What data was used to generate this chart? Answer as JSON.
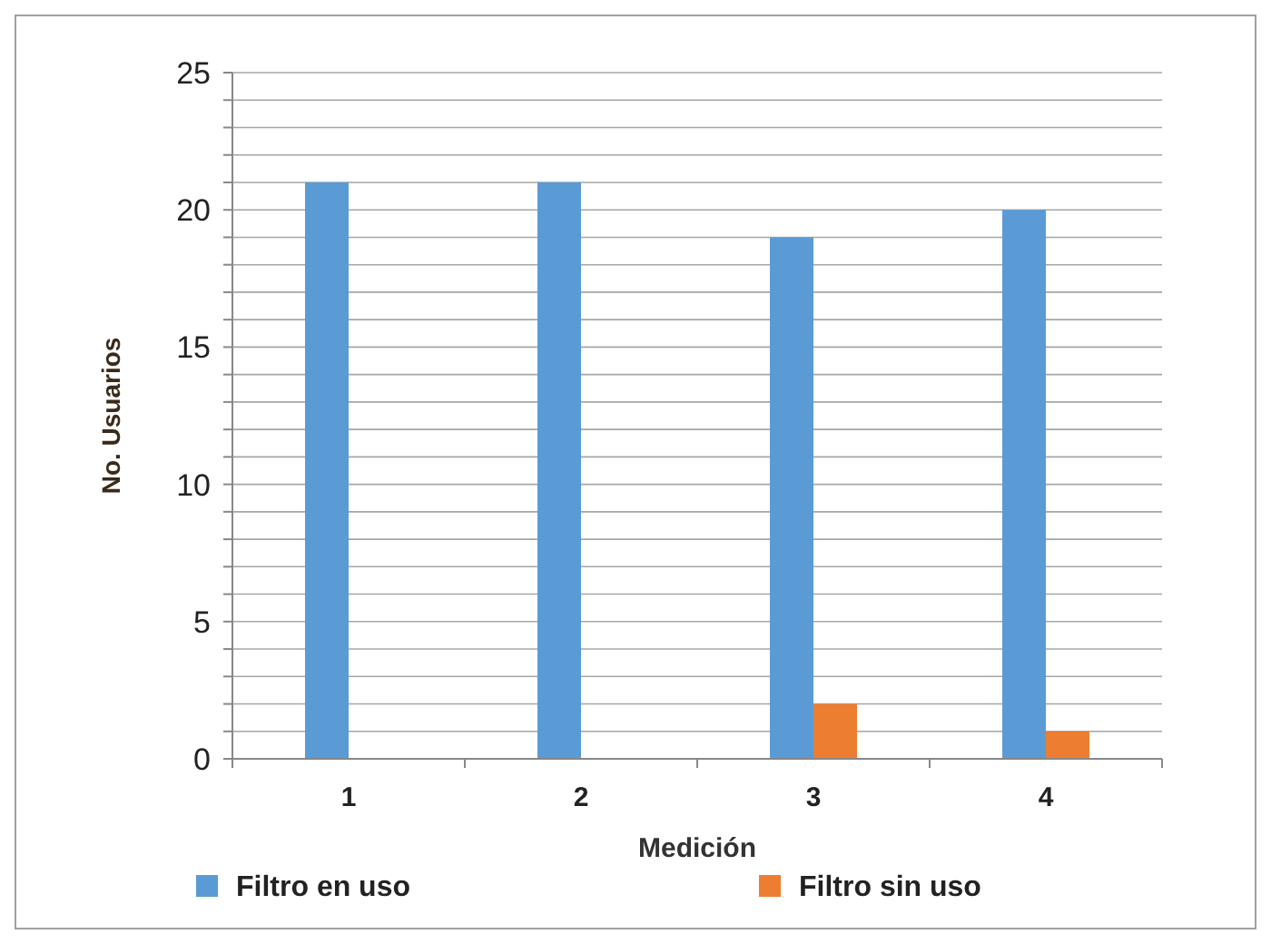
{
  "chart_data": {
    "type": "bar",
    "xlabel": "Medición",
    "ylabel": "No. Usuarios",
    "categories": [
      "1",
      "2",
      "3",
      "4"
    ],
    "series": [
      {
        "name": "Filtro en uso",
        "color": "#5b9bd5",
        "values": [
          21,
          21,
          19,
          20
        ]
      },
      {
        "name": "Filtro sin uso",
        "color": "#ed7d31",
        "values": [
          0,
          0,
          2,
          1
        ]
      }
    ],
    "ylim": [
      0,
      25
    ],
    "yticks": [
      0,
      {
        "value": 1,
        "label": null
      },
      {
        "value": 2,
        "label": null
      },
      {
        "value": 3,
        "label": null
      },
      {
        "value": 4,
        "label": null
      },
      5,
      {
        "value": 6,
        "label": null
      },
      {
        "value": 7,
        "label": null
      },
      {
        "value": 8,
        "label": null
      },
      {
        "value": 9,
        "label": null
      },
      10,
      {
        "value": 11,
        "label": null
      },
      {
        "value": 12,
        "label": null
      },
      {
        "value": 13,
        "label": null
      },
      {
        "value": 14,
        "label": null
      },
      15,
      {
        "value": 16,
        "label": null
      },
      {
        "value": 17,
        "label": null
      },
      {
        "value": 18,
        "label": null
      },
      {
        "value": 19,
        "label": null
      },
      20,
      {
        "value": 21,
        "label": null
      },
      {
        "value": 22,
        "label": null
      },
      {
        "value": 23,
        "label": null
      },
      {
        "value": 24,
        "label": null
      },
      25
    ],
    "grid": "y",
    "legend": "bottom"
  }
}
